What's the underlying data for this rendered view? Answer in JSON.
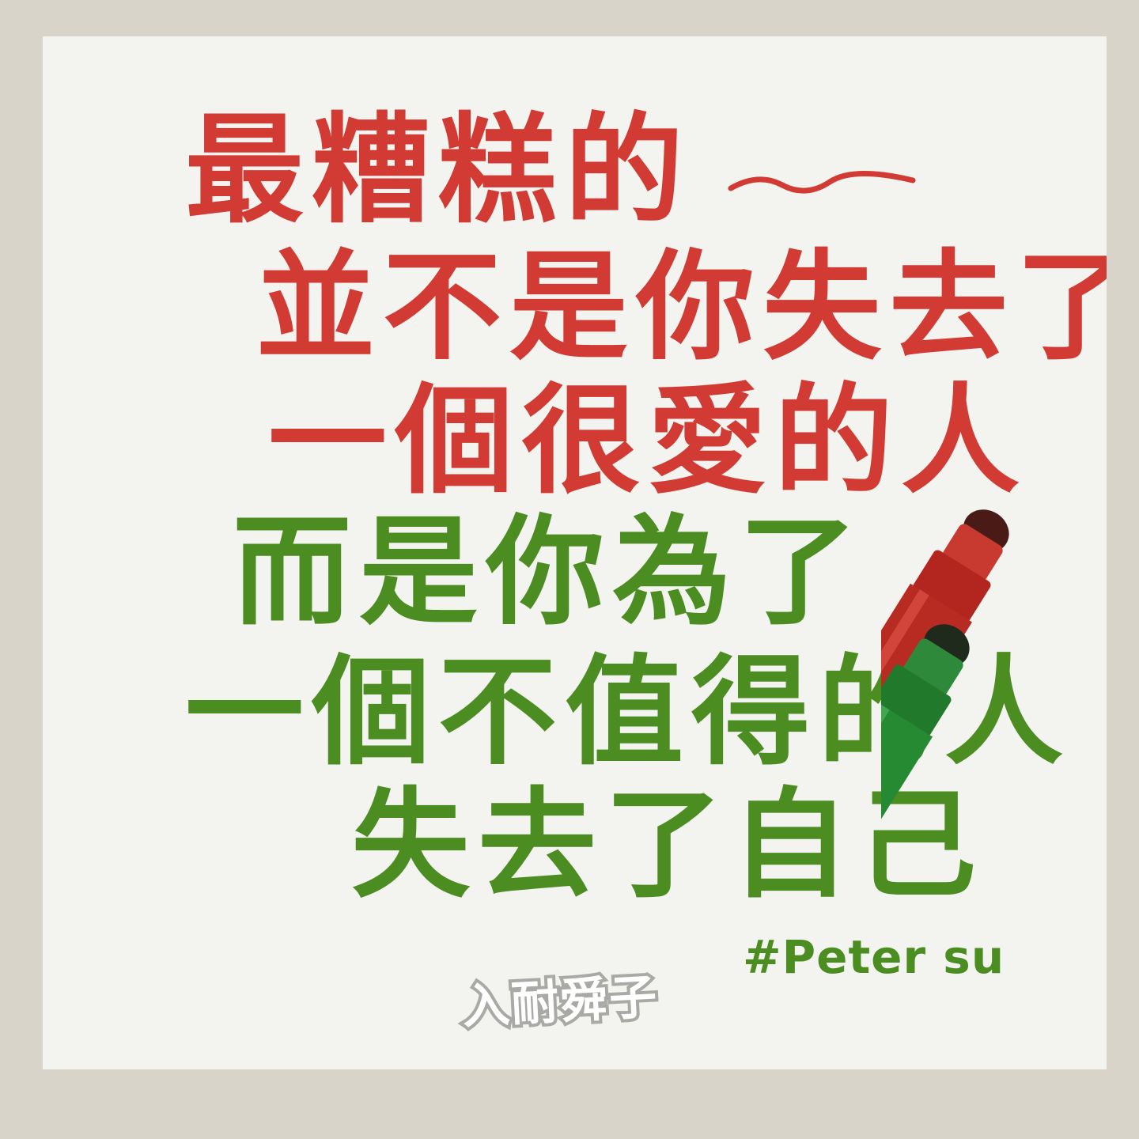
{
  "poem": {
    "line1": "最糟糕的",
    "line2": "並不是你失去了",
    "line3": "一個很愛的人",
    "line4": "而是你為了",
    "line5": "一個不值得的人",
    "line6": "失去了自己"
  },
  "signature": "#Peter su",
  "logo": "入耐舜子",
  "colors": {
    "background": "#d8d4c9",
    "card": "#f3f3ef",
    "red_text": "#d23b34",
    "green_text": "#4c8d22",
    "logo_gray": "#a9a9a6"
  },
  "decorations": {
    "markers": [
      "red-marker-icon",
      "green-marker-icon"
    ]
  }
}
